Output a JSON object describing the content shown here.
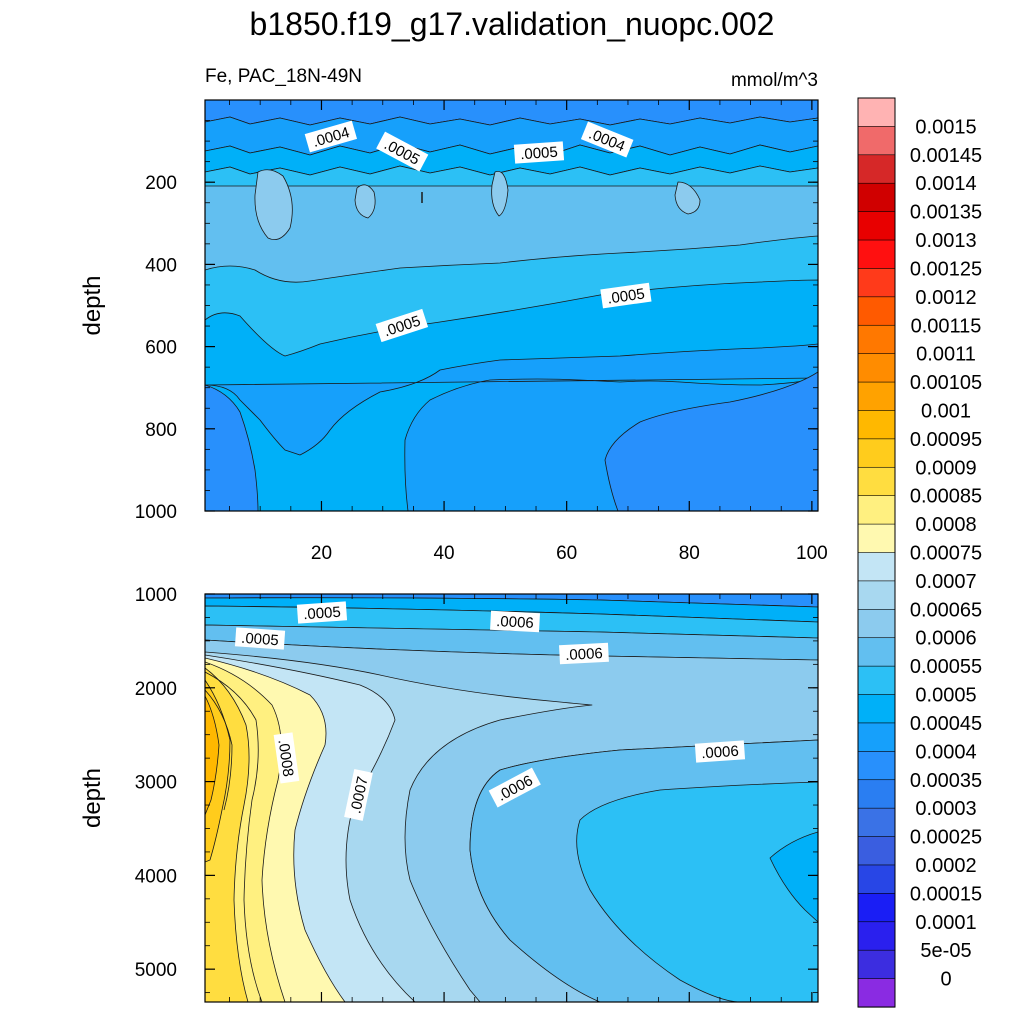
{
  "title": "b1850.f19_g17.validation_nuopc.002",
  "subtitle_left": "Fe, PAC_18N-49N",
  "subtitle_right": "mmol/m^3",
  "chart_data": [
    {
      "type": "heatmap",
      "name": "upper-depth-panel",
      "ylabel": "depth",
      "xlim": [
        1,
        101
      ],
      "ylim": [
        1000,
        0
      ],
      "x_ticks": [
        "20",
        "40",
        "60",
        "80",
        "100"
      ],
      "y_ticks": [
        "200",
        "400",
        "600",
        "800",
        "1000"
      ],
      "x_tick_values": [
        20,
        40,
        60,
        80,
        100
      ],
      "y_tick_values": [
        200,
        400,
        600,
        800,
        1000
      ],
      "contour_labels": [
        ".0004",
        ".0005",
        ".0005",
        ".0004",
        ".0005",
        ".0005"
      ],
      "field_range": [
        0.00035,
        0.00055
      ]
    },
    {
      "type": "heatmap",
      "name": "lower-depth-panel",
      "ylabel": "depth",
      "xlim": [
        1,
        101
      ],
      "ylim": [
        5350,
        1000
      ],
      "y_ticks": [
        "1000",
        "2000",
        "3000",
        "4000",
        "5000"
      ],
      "y_tick_values": [
        1000,
        2000,
        3000,
        4000,
        5000
      ],
      "contour_labels": [
        ".0005",
        ".0006",
        ".0005",
        ".0006",
        ".0008",
        ".0007",
        ".0006",
        ".0006"
      ],
      "field_range": [
        0.00045,
        0.00095
      ]
    }
  ],
  "colorbar": {
    "labels": [
      "0.0015",
      "0.00145",
      "0.0014",
      "0.00135",
      "0.0013",
      "0.00125",
      "0.0012",
      "0.00115",
      "0.0011",
      "0.00105",
      "0.001",
      "0.00095",
      "0.0009",
      "0.00085",
      "0.0008",
      "0.00075",
      "0.0007",
      "0.00065",
      "0.0006",
      "0.00055",
      "0.0005",
      "0.00045",
      "0.0004",
      "0.00035",
      "0.0003",
      "0.00025",
      "0.0002",
      "0.00015",
      "0.0001",
      "5e-05",
      "0"
    ],
    "colors": [
      "#ffb3b3",
      "#f06a6a",
      "#d62828",
      "#d00000",
      "#e80000",
      "#ff1010",
      "#ff3a1a",
      "#ff5a00",
      "#ff7800",
      "#ff8c00",
      "#ffa200",
      "#ffb800",
      "#ffcc1c",
      "#ffdd40",
      "#fff080",
      "#fff9b0",
      "#c3e5f5",
      "#a8d8f0",
      "#8ccbee",
      "#62bff0",
      "#2cc0f5",
      "#00b0f8",
      "#16a0fb",
      "#2890fc",
      "#2a7ef2",
      "#3a72e6",
      "#3a5ee0",
      "#2846e6",
      "#1a1ef5",
      "#2a20ee",
      "#3c2de0",
      "#8a2be2"
    ]
  }
}
